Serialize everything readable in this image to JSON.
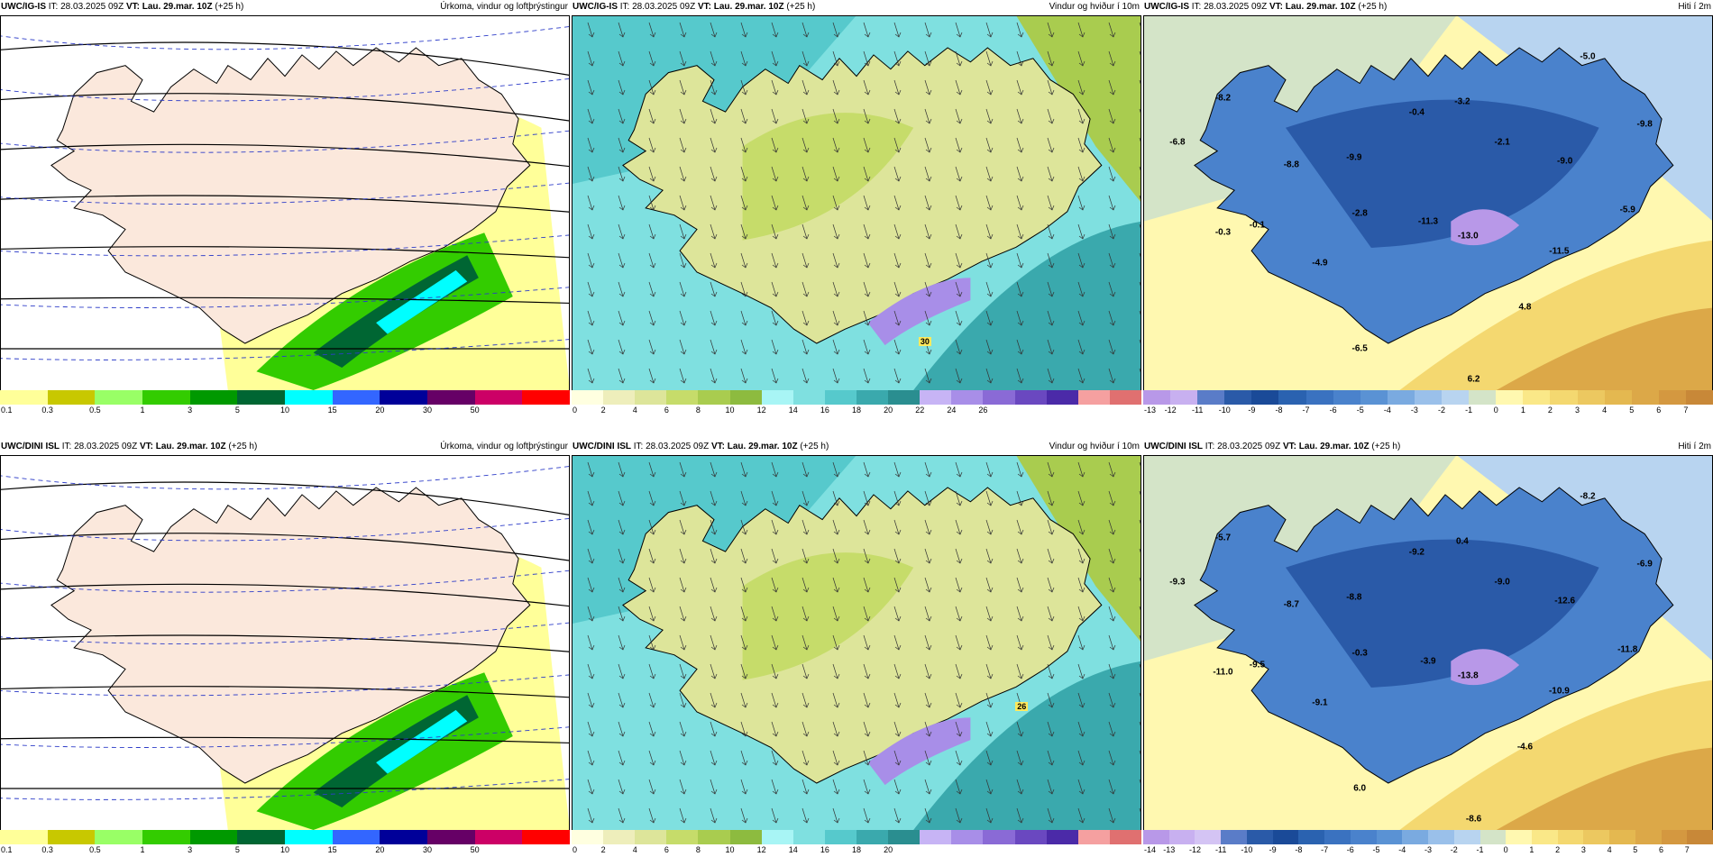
{
  "panels": [
    {
      "model": "UWC/IG-IS",
      "it_label": "IT:",
      "it_value": "28.03.2025 09Z",
      "vt_label": "VT:",
      "vt_value": "Lau. 29.mar. 10Z",
      "lead": "(+25 h)",
      "title": "Úrkoma, vindur og loftþrýstingur",
      "type": "precip",
      "colorbar": {
        "colors": [
          "#ffff99",
          "#c8c800",
          "#99ff66",
          "#33cc00",
          "#009900",
          "#006633",
          "#00ffff",
          "#3366ff",
          "#000099",
          "#660066",
          "#cc0066",
          "#ff0000"
        ],
        "labels": [
          "0.1",
          "0.3",
          "0.5",
          "1",
          "3",
          "5",
          "10",
          "15",
          "20",
          "30",
          "50"
        ]
      },
      "values": [],
      "badge": ""
    },
    {
      "model": "UWC/IG-IS",
      "it_label": "IT:",
      "it_value": "28.03.2025 09Z",
      "vt_label": "VT:",
      "vt_value": "Lau. 29.mar. 10Z",
      "lead": "(+25 h)",
      "title": "Vindur og hviður í 10m",
      "type": "wind",
      "colorbar": {
        "colors": [
          "#ffffe0",
          "#eeeebb",
          "#dde59a",
          "#c6dc6a",
          "#a9cc4f",
          "#8dbb3f",
          "#a8f5f5",
          "#7fe0e0",
          "#56c9cc",
          "#3aa9ad",
          "#2a8e90",
          "#c7b4f5",
          "#a88ee8",
          "#8a6ad6",
          "#6a48c0",
          "#4b2aa8",
          "#f5a0a0",
          "#e07070"
        ],
        "labels": [
          "0",
          "2",
          "4",
          "6",
          "8",
          "10",
          "12",
          "14",
          "16",
          "18",
          "20",
          "22",
          "24",
          "26"
        ]
      },
      "values": [],
      "badge": "30"
    },
    {
      "model": "UWC/IG-IS",
      "it_label": "IT:",
      "it_value": "28.03.2025 09Z",
      "vt_label": "VT:",
      "vt_value": "Lau. 29.mar. 10Z",
      "lead": "(+25 h)",
      "title": "Hiti í 2m",
      "type": "temp",
      "colorbar": {
        "colors": [
          "#b898e8",
          "#c8b0f0",
          "#5a7cc8",
          "#2a5aa8",
          "#1a4a98",
          "#2a62b0",
          "#3a72c0",
          "#4a82cc",
          "#5a92d4",
          "#7aaae0",
          "#9ac0ea",
          "#b8d4f0",
          "#d4e4c8",
          "#fff8b0",
          "#fae888",
          "#f4d870",
          "#ecc860",
          "#e4b850",
          "#dca848",
          "#d49840",
          "#c88838"
        ],
        "labels": [
          "-13",
          "-12",
          "-11",
          "-10",
          "-9",
          "-8",
          "-7",
          "-6",
          "-5",
          "-4",
          "-3",
          "-2",
          "-1",
          "0",
          "1",
          "2",
          "3",
          "4",
          "5",
          "6",
          "7"
        ]
      },
      "values": [
        "-5.0",
        "-8.2",
        "-3.2",
        "-6.8",
        "-0.4",
        "-9.8",
        "-8.8",
        "-9.9",
        "-2.1",
        "-9.0",
        "-0.3",
        "-0.1",
        "-2.8",
        "-11.3",
        "-5.9",
        "-13.0",
        "-11.5",
        "-4.9",
        "4.8",
        "-6.5",
        "6.2"
      ],
      "badge": ""
    },
    {
      "model": "UWC/DINI ISL",
      "it_label": "IT:",
      "it_value": "28.03.2025 09Z",
      "vt_label": "VT:",
      "vt_value": "Lau. 29.mar. 10Z",
      "lead": "(+25 h)",
      "title": "Úrkoma, vindur og loftþrýstingur",
      "type": "precip",
      "colorbar": {
        "colors": [
          "#ffff99",
          "#c8c800",
          "#99ff66",
          "#33cc00",
          "#009900",
          "#006633",
          "#00ffff",
          "#3366ff",
          "#000099",
          "#660066",
          "#cc0066",
          "#ff0000"
        ],
        "labels": [
          "0.1",
          "0.3",
          "0.5",
          "1",
          "3",
          "5",
          "10",
          "15",
          "20",
          "30",
          "50"
        ]
      },
      "values": [],
      "badge": ""
    },
    {
      "model": "UWC/DINI ISL",
      "it_label": "IT:",
      "it_value": "28.03.2025 09Z",
      "vt_label": "VT:",
      "vt_value": "Lau. 29.mar. 10Z",
      "lead": "(+25 h)",
      "title": "Vindur og hviður í 10m",
      "type": "wind",
      "colorbar": {
        "colors": [
          "#ffffe0",
          "#eeeebb",
          "#dde59a",
          "#c6dc6a",
          "#a9cc4f",
          "#8dbb3f",
          "#a8f5f5",
          "#7fe0e0",
          "#56c9cc",
          "#3aa9ad",
          "#2a8e90",
          "#c7b4f5",
          "#a88ee8",
          "#8a6ad6",
          "#6a48c0",
          "#4b2aa8",
          "#f5a0a0",
          "#e07070"
        ],
        "labels": [
          "0",
          "2",
          "4",
          "6",
          "8",
          "10",
          "12",
          "14",
          "16",
          "18",
          "20"
        ]
      },
      "values": [],
      "badge": "26"
    },
    {
      "model": "UWC/DINI ISL",
      "it_label": "IT:",
      "it_value": "28.03.2025 09Z",
      "vt_label": "VT:",
      "vt_value": "Lau. 29.mar. 10Z",
      "lead": "(+25 h)",
      "title": "Hiti í 2m",
      "type": "temp",
      "colorbar": {
        "colors": [
          "#b898e8",
          "#c8b0f0",
          "#d4c4f4",
          "#5a7cc8",
          "#2a5aa8",
          "#1a4a98",
          "#2a62b0",
          "#3a72c0",
          "#4a82cc",
          "#5a92d4",
          "#7aaae0",
          "#9ac0ea",
          "#b8d4f0",
          "#d4e4c8",
          "#fff8b0",
          "#fae888",
          "#f4d870",
          "#ecc860",
          "#e4b850",
          "#dca848",
          "#d49840",
          "#c88838"
        ],
        "labels": [
          "-14",
          "-13",
          "-12",
          "-11",
          "-10",
          "-9",
          "-8",
          "-7",
          "-6",
          "-5",
          "-4",
          "-3",
          "-2",
          "-1",
          "0",
          "1",
          "2",
          "3",
          "4",
          "5",
          "6",
          "7"
        ]
      },
      "values": [
        "-8.2",
        "-5.7",
        "0.4",
        "-9.3",
        "-9.2",
        "-6.9",
        "-8.7",
        "-8.8",
        "-9.0",
        "-12.6",
        "-11.0",
        "-9.5",
        "-0.3",
        "-3.9",
        "-11.8",
        "-13.8",
        "-10.9",
        "-9.1",
        "-4.6",
        "6.0",
        "-8.6"
      ],
      "badge": ""
    }
  ]
}
